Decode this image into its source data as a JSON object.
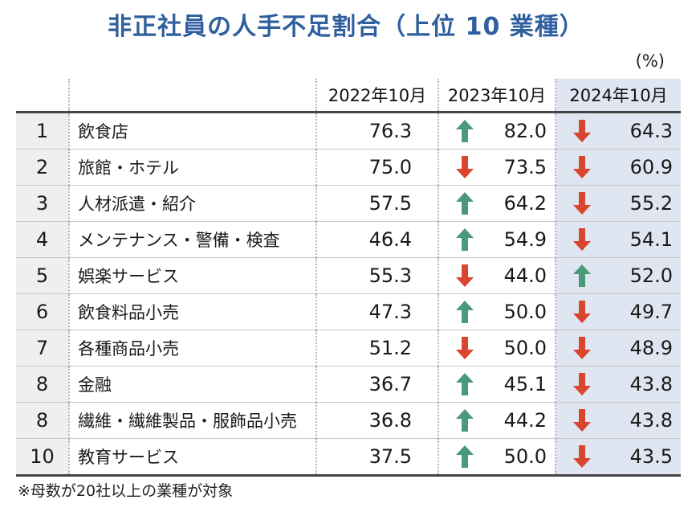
{
  "title": "非正社員の人手不足割合（上位 10 業種）",
  "unit": "(%)",
  "footnote": "※母数が20社以上の業種が対象",
  "colors": {
    "title": "#2f5f9e",
    "arrow_up": "#4a9a7a",
    "arrow_down": "#d9452e",
    "highlight_column": "#dfe6f1",
    "rank_column": "#efefef"
  },
  "chart_data": {
    "type": "table",
    "title": "非正社員の人手不足割合（上位 10 業種）",
    "columns": [
      "2022年10月",
      "2023年10月",
      "2024年10月"
    ],
    "rows": [
      {
        "rank": "1",
        "industry": "飲食店",
        "values": [
          "76.3",
          "82.0",
          "64.3"
        ],
        "trend": [
          null,
          "up",
          "down"
        ]
      },
      {
        "rank": "2",
        "industry": "旅館・ホテル",
        "values": [
          "75.0",
          "73.5",
          "60.9"
        ],
        "trend": [
          null,
          "down",
          "down"
        ]
      },
      {
        "rank": "3",
        "industry": "人材派遣・紹介",
        "values": [
          "57.5",
          "64.2",
          "55.2"
        ],
        "trend": [
          null,
          "up",
          "down"
        ]
      },
      {
        "rank": "4",
        "industry": "メンテナンス・警備・検査",
        "values": [
          "46.4",
          "54.9",
          "54.1"
        ],
        "trend": [
          null,
          "up",
          "down"
        ]
      },
      {
        "rank": "5",
        "industry": "娯楽サービス",
        "values": [
          "55.3",
          "44.0",
          "52.0"
        ],
        "trend": [
          null,
          "down",
          "up"
        ]
      },
      {
        "rank": "6",
        "industry": "飲食料品小売",
        "values": [
          "47.3",
          "50.0",
          "49.7"
        ],
        "trend": [
          null,
          "up",
          "down"
        ]
      },
      {
        "rank": "7",
        "industry": "各種商品小売",
        "values": [
          "51.2",
          "50.0",
          "48.9"
        ],
        "trend": [
          null,
          "down",
          "down"
        ]
      },
      {
        "rank": "8",
        "industry": "金融",
        "values": [
          "36.7",
          "45.1",
          "43.8"
        ],
        "trend": [
          null,
          "up",
          "down"
        ]
      },
      {
        "rank": "8",
        "industry": "繊維・繊維製品・服飾品小売",
        "values": [
          "36.8",
          "44.2",
          "43.8"
        ],
        "trend": [
          null,
          "up",
          "down"
        ]
      },
      {
        "rank": "10",
        "industry": "教育サービス",
        "values": [
          "37.5",
          "50.0",
          "43.5"
        ],
        "trend": [
          null,
          "up",
          "down"
        ]
      }
    ]
  }
}
